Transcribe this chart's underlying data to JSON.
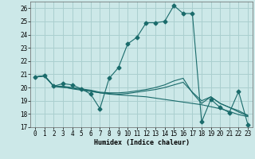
{
  "title": "",
  "xlabel": "Humidex (Indice chaleur)",
  "xlim": [
    -0.5,
    23.5
  ],
  "ylim": [
    17,
    26.5
  ],
  "yticks": [
    17,
    18,
    19,
    20,
    21,
    22,
    23,
    24,
    25,
    26
  ],
  "xticks": [
    0,
    1,
    2,
    3,
    4,
    5,
    6,
    7,
    8,
    9,
    10,
    11,
    12,
    13,
    14,
    15,
    16,
    17,
    18,
    19,
    20,
    21,
    22,
    23
  ],
  "background_color": "#cce8e8",
  "grid_color": "#aacfcf",
  "line_color": "#1a6b6b",
  "line1_x": [
    0,
    1,
    2,
    3,
    4,
    5,
    6,
    7,
    8,
    9,
    10,
    11,
    12,
    13,
    14,
    15,
    16,
    17,
    18,
    19,
    20,
    21,
    22,
    23
  ],
  "line1_y": [
    20.8,
    20.9,
    20.1,
    20.3,
    20.2,
    19.9,
    19.5,
    18.4,
    20.7,
    21.5,
    23.3,
    23.8,
    24.9,
    24.9,
    25.0,
    26.2,
    25.6,
    25.6,
    17.4,
    19.1,
    18.5,
    18.1,
    19.7,
    17.2
  ],
  "line2_x": [
    0,
    1,
    2,
    3,
    4,
    5,
    6,
    7,
    8,
    9,
    10,
    11,
    12,
    13,
    14,
    15,
    16,
    17,
    18,
    19,
    20,
    21,
    22,
    23
  ],
  "line2_y": [
    20.8,
    20.85,
    20.1,
    20.05,
    19.9,
    19.8,
    19.7,
    19.6,
    19.5,
    19.45,
    19.4,
    19.35,
    19.3,
    19.2,
    19.1,
    19.0,
    18.9,
    18.8,
    18.7,
    18.55,
    18.4,
    18.2,
    17.95,
    17.8
  ],
  "line3_x": [
    0,
    1,
    2,
    3,
    4,
    5,
    6,
    7,
    8,
    9,
    10,
    11,
    12,
    13,
    14,
    15,
    16,
    17,
    18,
    19,
    20,
    21,
    22,
    23
  ],
  "line3_y": [
    20.8,
    20.9,
    20.1,
    20.1,
    20.0,
    19.9,
    19.8,
    19.65,
    19.6,
    19.6,
    19.65,
    19.75,
    19.85,
    20.0,
    20.2,
    20.5,
    20.7,
    19.6,
    18.8,
    19.3,
    18.8,
    18.5,
    18.25,
    17.9
  ],
  "line4_x": [
    0,
    1,
    2,
    3,
    4,
    5,
    6,
    7,
    8,
    9,
    10,
    11,
    12,
    13,
    14,
    15,
    16,
    17,
    18,
    19,
    20,
    21,
    22,
    23
  ],
  "line4_y": [
    20.8,
    20.9,
    20.1,
    20.0,
    19.95,
    19.85,
    19.75,
    19.6,
    19.55,
    19.5,
    19.55,
    19.65,
    19.75,
    19.85,
    20.0,
    20.2,
    20.4,
    19.65,
    19.0,
    19.3,
    18.8,
    18.5,
    18.15,
    17.85
  ],
  "markersize": 2.5,
  "linewidth": 0.8,
  "tick_fontsize": 5.5
}
